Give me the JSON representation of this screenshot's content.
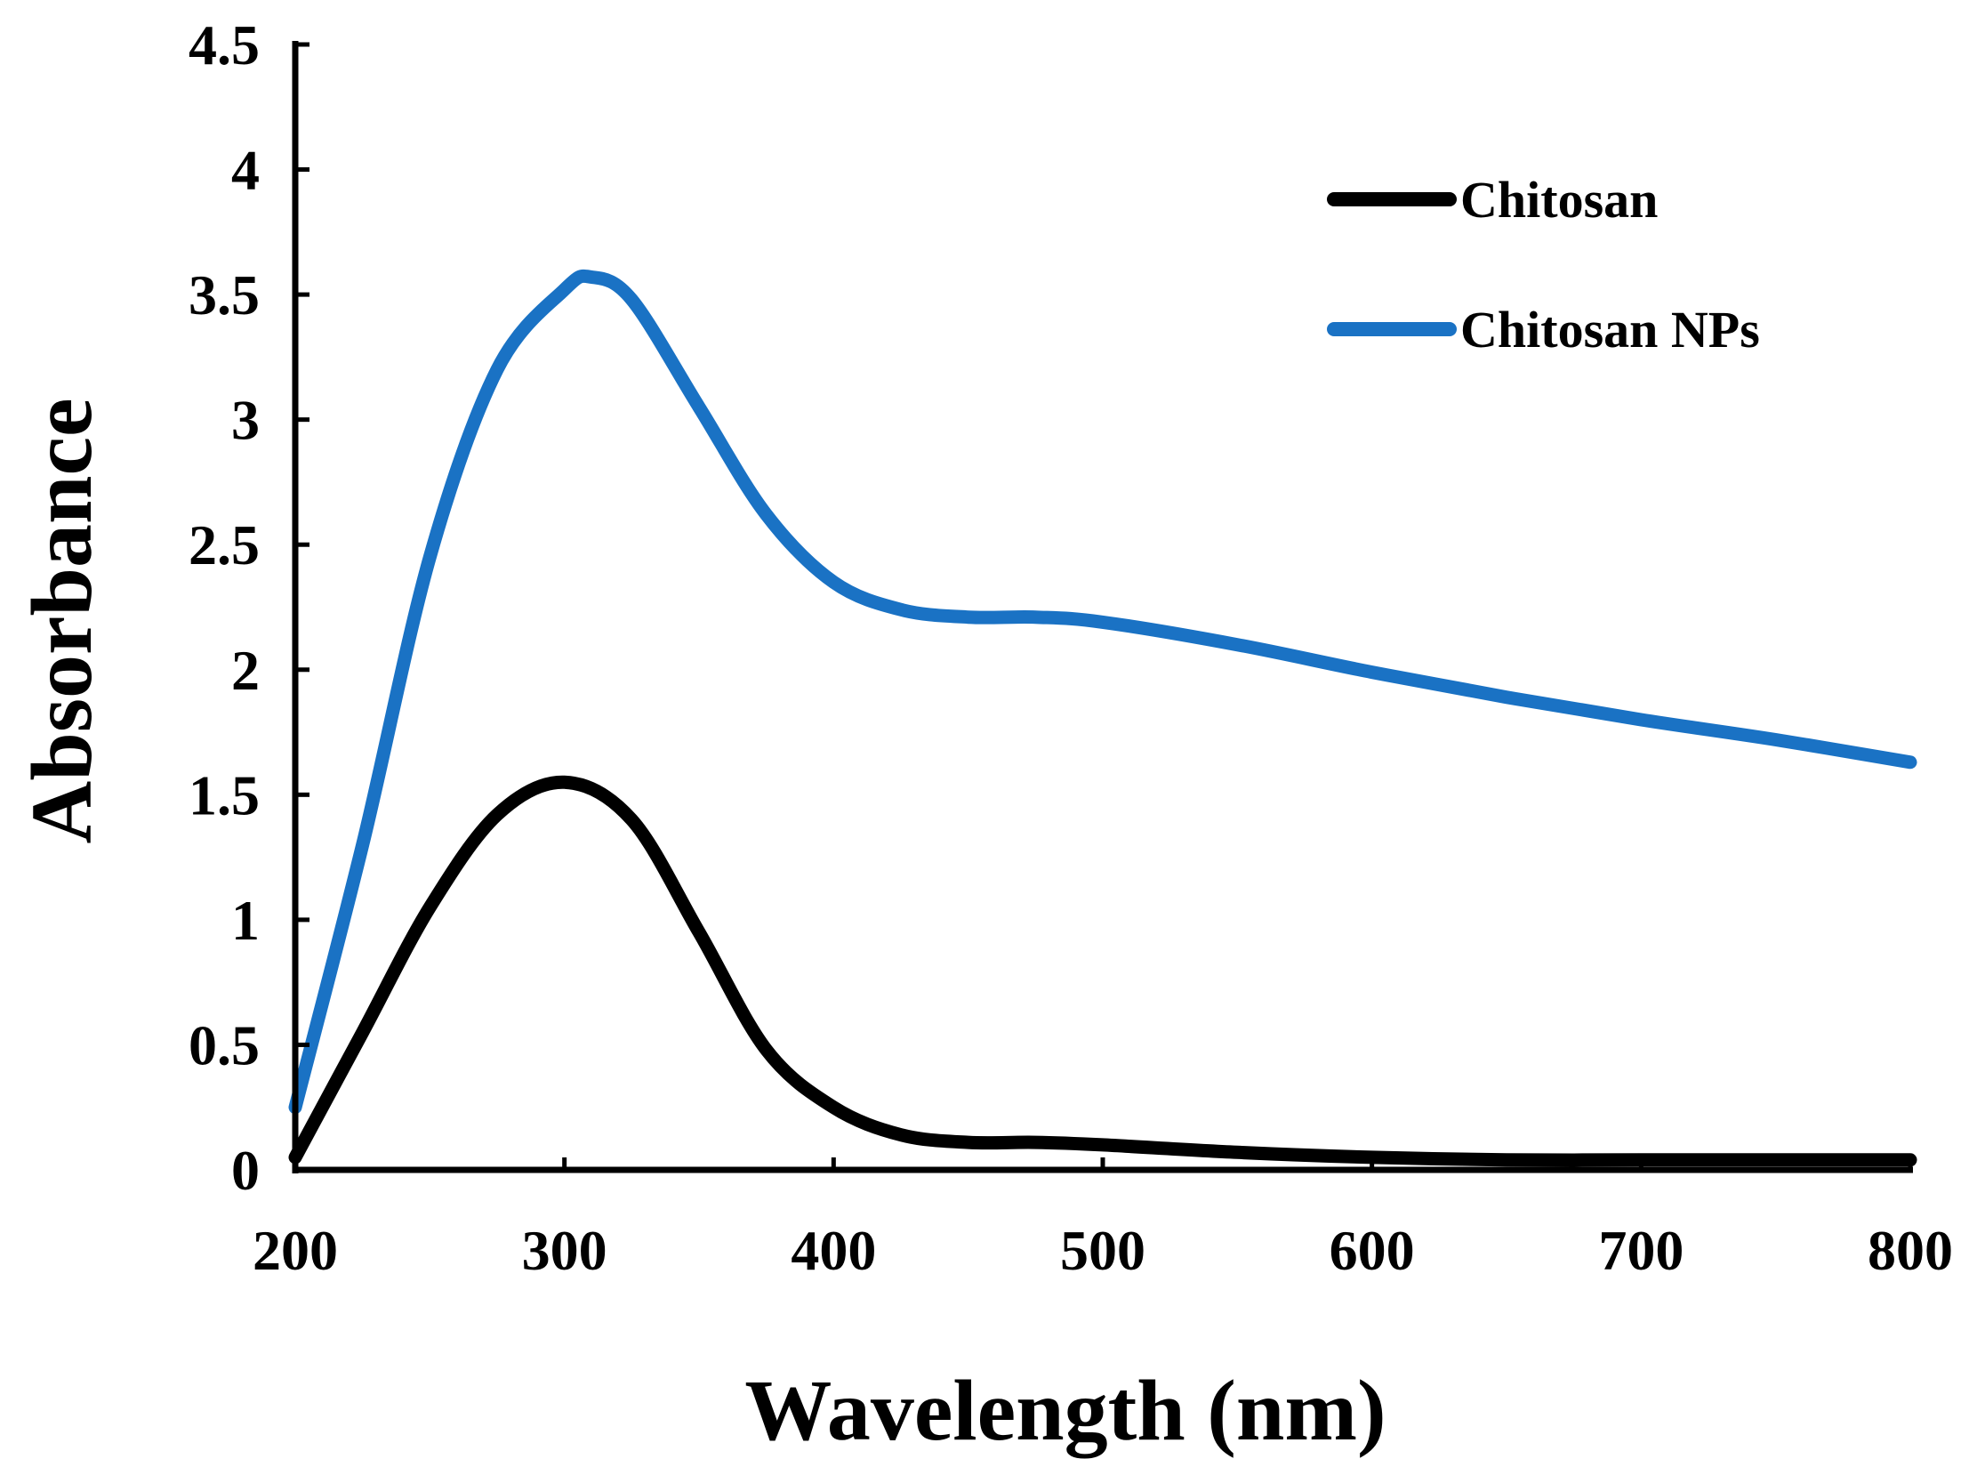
{
  "chart_data": {
    "type": "line",
    "title": "",
    "xlabel": "Wavelength (nm)",
    "ylabel": "Absorbance",
    "xlim": [
      200,
      800
    ],
    "ylim": [
      0,
      4.5
    ],
    "xticks": [
      200,
      300,
      400,
      500,
      600,
      700,
      800
    ],
    "xtick_labels": [
      "200",
      "300",
      "400",
      "500",
      "600",
      "700",
      "800"
    ],
    "yticks": [
      0,
      0.5,
      1,
      1.5,
      2,
      2.5,
      3,
      3.5,
      4,
      4.5
    ],
    "ytick_labels": [
      "0",
      "0.5",
      "1",
      "1.5",
      "2",
      "2.5",
      "3",
      "3.5",
      "4",
      "4.5"
    ],
    "grid": false,
    "legend_position": "top-right",
    "series": [
      {
        "name": "Chitosan",
        "color": "#000000",
        "x": [
          200,
          225,
          250,
          275,
          300,
          325,
          350,
          375,
          400,
          425,
          450,
          475,
          500,
          550,
          600,
          650,
          700,
          750,
          800
        ],
        "y": [
          0.05,
          0.55,
          1.05,
          1.42,
          1.55,
          1.4,
          0.95,
          0.48,
          0.25,
          0.14,
          0.11,
          0.11,
          0.1,
          0.07,
          0.05,
          0.04,
          0.04,
          0.04,
          0.04
        ]
      },
      {
        "name": "Chitosan NPs",
        "color": "#1a72c4",
        "x": [
          200,
          225,
          250,
          275,
          300,
          310,
          325,
          350,
          375,
          400,
          425,
          450,
          475,
          500,
          550,
          600,
          650,
          700,
          750,
          800
        ],
        "y": [
          0.25,
          1.3,
          2.45,
          3.2,
          3.52,
          3.57,
          3.48,
          3.05,
          2.62,
          2.35,
          2.24,
          2.21,
          2.21,
          2.19,
          2.1,
          1.99,
          1.89,
          1.8,
          1.72,
          1.63
        ]
      }
    ]
  }
}
